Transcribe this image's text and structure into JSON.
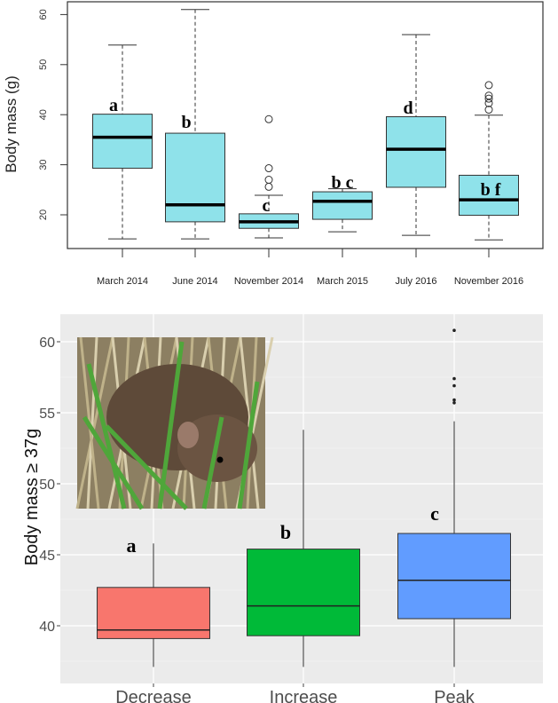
{
  "chart_data": [
    {
      "type": "box",
      "ylabel": "Body mass (g)",
      "ylim": [
        13,
        62.5
      ],
      "yticks": [
        20,
        30,
        40,
        50,
        60
      ],
      "grid": false,
      "box_color": "#8fe2ea",
      "categories": [
        "March 2014",
        "June 2014",
        "November 2014",
        "March 2015",
        "July 2016",
        "November 2016"
      ],
      "boxes": [
        {
          "whisker_low": 15.2,
          "q1": 29.3,
          "median": 35.5,
          "q3": 40.1,
          "whisker_high": 53.9,
          "outliers": [],
          "letter": "a"
        },
        {
          "whisker_low": 15.2,
          "q1": 18.6,
          "median": 22.0,
          "q3": 36.3,
          "whisker_high": 61.0,
          "outliers": [],
          "letter": "b"
        },
        {
          "whisker_low": 15.4,
          "q1": 17.3,
          "median": 18.6,
          "q3": 20.2,
          "whisker_high": 23.9,
          "outliers": [
            25.6,
            27.0,
            29.3,
            39.1
          ],
          "letter": "c"
        },
        {
          "whisker_low": 16.6,
          "q1": 19.1,
          "median": 22.7,
          "q3": 24.6,
          "whisker_high": 25.2,
          "outliers": [],
          "letter": "b c"
        },
        {
          "whisker_low": 15.9,
          "q1": 25.5,
          "median": 33.1,
          "q3": 39.6,
          "whisker_high": 56.0,
          "outliers": [],
          "letter": "d"
        },
        {
          "whisker_low": 15.0,
          "q1": 19.9,
          "median": 23.0,
          "q3": 27.9,
          "whisker_high": 39.9,
          "outliers": [
            41.0,
            42.3,
            43.2,
            43.8,
            45.9
          ],
          "letter": "b f"
        }
      ]
    },
    {
      "type": "box",
      "ylabel": "Body mass ≥ 37g",
      "ylim": [
        36,
        62
      ],
      "yticks": [
        40,
        45,
        50,
        55,
        60
      ],
      "grid": true,
      "categories": [
        "Decrease",
        "Increase",
        "Peak"
      ],
      "boxes": [
        {
          "whisker_low": 37.1,
          "q1": 39.1,
          "median": 39.7,
          "q3": 42.7,
          "whisker_high": 45.8,
          "outliers": [],
          "letter": "a",
          "color": "#f8766d"
        },
        {
          "whisker_low": 37.1,
          "q1": 39.3,
          "median": 41.4,
          "q3": 45.4,
          "whisker_high": 53.8,
          "outliers": [],
          "letter": "b",
          "color": "#00ba38"
        },
        {
          "whisker_low": 37.1,
          "q1": 40.5,
          "median": 43.2,
          "q3": 46.5,
          "whisker_high": 54.4,
          "outliers": [
            55.7,
            55.9,
            56.9,
            57.4,
            60.8
          ],
          "letter": "c",
          "color": "#619cff"
        }
      ],
      "inset_image": "vole-photo"
    }
  ]
}
